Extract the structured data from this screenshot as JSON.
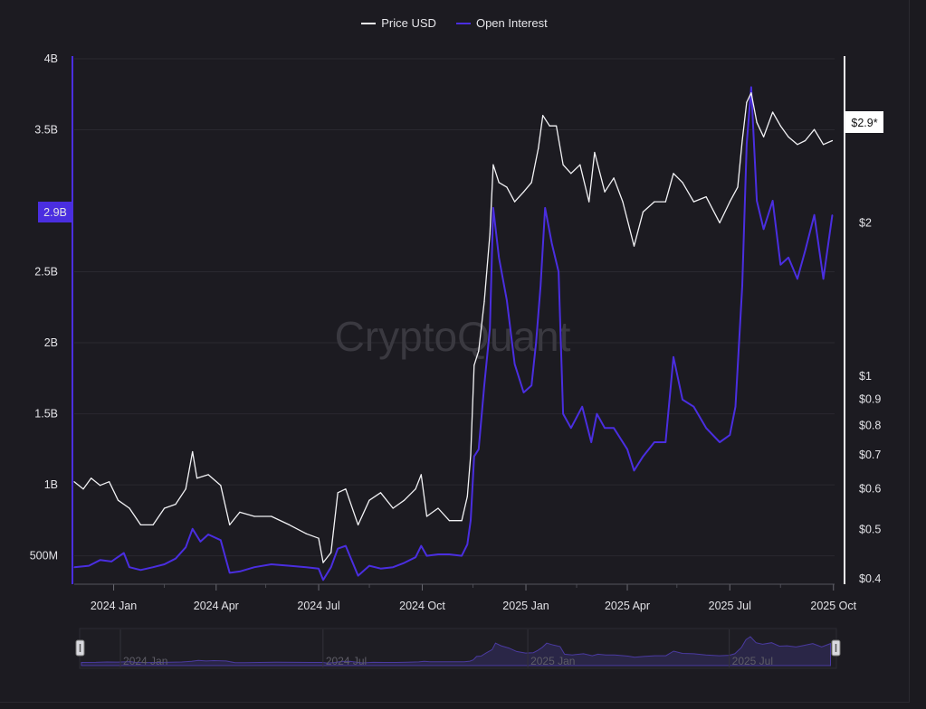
{
  "legend": {
    "items": [
      {
        "label": "Price USD",
        "color": "#f2f2f5"
      },
      {
        "label": "Open Interest",
        "color": "#4a2ee0"
      }
    ]
  },
  "watermark": "CryptoQuant",
  "badges": {
    "left_value": "2.9B",
    "right_value": "$2.9*"
  },
  "navigator": {
    "labels": [
      "2024 Jan",
      "2024 Jul",
      "2025 Jan",
      "2025 Jul"
    ]
  },
  "chart_data": {
    "type": "line",
    "x_ticks": [
      "2024 Jan",
      "2024 Apr",
      "2024 Jul",
      "2024 Oct",
      "2025 Jan",
      "2025 Apr",
      "2025 Jul",
      "2025 Oct"
    ],
    "x_range": [
      "2023-11-27",
      "2025-10-02"
    ],
    "y_left": {
      "label": "Open Interest",
      "range": [
        300000000,
        4000000000
      ],
      "ticks": [
        {
          "v": 500000000,
          "t": "500M"
        },
        {
          "v": 1000000000,
          "t": "1B"
        },
        {
          "v": 1500000000,
          "t": "1.5B"
        },
        {
          "v": 2000000000,
          "t": "2B"
        },
        {
          "v": 2500000000,
          "t": "2.5B"
        },
        {
          "v": 3500000000,
          "t": "3.5B"
        },
        {
          "v": 4000000000,
          "t": "4B"
        }
      ]
    },
    "y_right": {
      "label": "Price USD",
      "scale": "log",
      "range": [
        0.39,
        4.2
      ],
      "ticks": [
        {
          "v": 0.4,
          "t": "$0.4"
        },
        {
          "v": 0.5,
          "t": "$0.5"
        },
        {
          "v": 0.6,
          "t": "$0.6"
        },
        {
          "v": 0.7,
          "t": "$0.7"
        },
        {
          "v": 0.8,
          "t": "$0.8"
        },
        {
          "v": 0.9,
          "t": "$0.9"
        },
        {
          "v": 1,
          "t": "$1"
        },
        {
          "v": 2,
          "t": "$2"
        }
      ]
    },
    "series": [
      {
        "name": "Price USD",
        "axis": "right",
        "color": "#f2f2f5",
        "points": [
          [
            "2023-11-27",
            0.62
          ],
          [
            "2023-12-05",
            0.6
          ],
          [
            "2023-12-12",
            0.63
          ],
          [
            "2023-12-20",
            0.61
          ],
          [
            "2023-12-28",
            0.62
          ],
          [
            "2024-01-05",
            0.57
          ],
          [
            "2024-01-15",
            0.55
          ],
          [
            "2024-01-25",
            0.51
          ],
          [
            "2024-02-05",
            0.51
          ],
          [
            "2024-02-15",
            0.55
          ],
          [
            "2024-02-25",
            0.56
          ],
          [
            "2024-03-05",
            0.6
          ],
          [
            "2024-03-11",
            0.71
          ],
          [
            "2024-03-15",
            0.63
          ],
          [
            "2024-03-25",
            0.64
          ],
          [
            "2024-04-05",
            0.61
          ],
          [
            "2024-04-13",
            0.51
          ],
          [
            "2024-04-22",
            0.54
          ],
          [
            "2024-05-05",
            0.53
          ],
          [
            "2024-05-20",
            0.53
          ],
          [
            "2024-06-05",
            0.51
          ],
          [
            "2024-06-20",
            0.49
          ],
          [
            "2024-07-01",
            0.48
          ],
          [
            "2024-07-05",
            0.43
          ],
          [
            "2024-07-12",
            0.45
          ],
          [
            "2024-07-18",
            0.59
          ],
          [
            "2024-07-25",
            0.6
          ],
          [
            "2024-08-05",
            0.51
          ],
          [
            "2024-08-15",
            0.57
          ],
          [
            "2024-08-25",
            0.59
          ],
          [
            "2024-09-05",
            0.55
          ],
          [
            "2024-09-15",
            0.57
          ],
          [
            "2024-09-25",
            0.6
          ],
          [
            "2024-09-30",
            0.64
          ],
          [
            "2024-10-05",
            0.53
          ],
          [
            "2024-10-15",
            0.55
          ],
          [
            "2024-10-25",
            0.52
          ],
          [
            "2024-11-05",
            0.52
          ],
          [
            "2024-11-10",
            0.58
          ],
          [
            "2024-11-13",
            0.7
          ],
          [
            "2024-11-16",
            1.05
          ],
          [
            "2024-11-20",
            1.12
          ],
          [
            "2024-11-25",
            1.4
          ],
          [
            "2024-11-30",
            1.9
          ],
          [
            "2024-12-03",
            2.6
          ],
          [
            "2024-12-08",
            2.4
          ],
          [
            "2024-12-15",
            2.35
          ],
          [
            "2024-12-22",
            2.2
          ],
          [
            "2024-12-30",
            2.3
          ],
          [
            "2025-01-06",
            2.4
          ],
          [
            "2025-01-12",
            2.8
          ],
          [
            "2025-01-16",
            3.25
          ],
          [
            "2025-01-22",
            3.1
          ],
          [
            "2025-01-28",
            3.1
          ],
          [
            "2025-02-03",
            2.6
          ],
          [
            "2025-02-10",
            2.5
          ],
          [
            "2025-02-18",
            2.6
          ],
          [
            "2025-02-26",
            2.2
          ],
          [
            "2025-03-03",
            2.75
          ],
          [
            "2025-03-12",
            2.3
          ],
          [
            "2025-03-20",
            2.45
          ],
          [
            "2025-03-28",
            2.2
          ],
          [
            "2025-04-07",
            1.8
          ],
          [
            "2025-04-15",
            2.1
          ],
          [
            "2025-04-25",
            2.2
          ],
          [
            "2025-05-05",
            2.2
          ],
          [
            "2025-05-12",
            2.5
          ],
          [
            "2025-05-20",
            2.4
          ],
          [
            "2025-05-30",
            2.2
          ],
          [
            "2025-06-10",
            2.25
          ],
          [
            "2025-06-22",
            2.0
          ],
          [
            "2025-07-01",
            2.2
          ],
          [
            "2025-07-08",
            2.35
          ],
          [
            "2025-07-12",
            2.9
          ],
          [
            "2025-07-16",
            3.45
          ],
          [
            "2025-07-20",
            3.6
          ],
          [
            "2025-07-25",
            3.15
          ],
          [
            "2025-07-31",
            2.95
          ],
          [
            "2025-08-08",
            3.3
          ],
          [
            "2025-08-15",
            3.1
          ],
          [
            "2025-08-22",
            2.95
          ],
          [
            "2025-08-30",
            2.85
          ],
          [
            "2025-09-06",
            2.9
          ],
          [
            "2025-09-14",
            3.05
          ],
          [
            "2025-09-22",
            2.85
          ],
          [
            "2025-09-30",
            2.9
          ]
        ]
      },
      {
        "name": "Open Interest",
        "axis": "left",
        "color": "#4a2ee0",
        "points": [
          [
            "2023-11-27",
            420000000
          ],
          [
            "2023-12-10",
            430000000
          ],
          [
            "2023-12-20",
            470000000
          ],
          [
            "2023-12-30",
            460000000
          ],
          [
            "2024-01-10",
            520000000
          ],
          [
            "2024-01-15",
            420000000
          ],
          [
            "2024-01-25",
            400000000
          ],
          [
            "2024-02-05",
            420000000
          ],
          [
            "2024-02-15",
            440000000
          ],
          [
            "2024-02-25",
            480000000
          ],
          [
            "2024-03-05",
            560000000
          ],
          [
            "2024-03-11",
            690000000
          ],
          [
            "2024-03-18",
            600000000
          ],
          [
            "2024-03-25",
            650000000
          ],
          [
            "2024-04-05",
            610000000
          ],
          [
            "2024-04-13",
            380000000
          ],
          [
            "2024-04-22",
            390000000
          ],
          [
            "2024-05-05",
            420000000
          ],
          [
            "2024-05-20",
            440000000
          ],
          [
            "2024-06-05",
            430000000
          ],
          [
            "2024-06-20",
            420000000
          ],
          [
            "2024-07-01",
            410000000
          ],
          [
            "2024-07-05",
            330000000
          ],
          [
            "2024-07-12",
            420000000
          ],
          [
            "2024-07-18",
            550000000
          ],
          [
            "2024-07-25",
            570000000
          ],
          [
            "2024-08-05",
            360000000
          ],
          [
            "2024-08-15",
            430000000
          ],
          [
            "2024-08-25",
            410000000
          ],
          [
            "2024-09-05",
            420000000
          ],
          [
            "2024-09-15",
            450000000
          ],
          [
            "2024-09-25",
            490000000
          ],
          [
            "2024-09-30",
            570000000
          ],
          [
            "2024-10-05",
            500000000
          ],
          [
            "2024-10-15",
            510000000
          ],
          [
            "2024-10-25",
            510000000
          ],
          [
            "2024-11-05",
            500000000
          ],
          [
            "2024-11-10",
            580000000
          ],
          [
            "2024-11-13",
            750000000
          ],
          [
            "2024-11-16",
            1200000000
          ],
          [
            "2024-11-20",
            1250000000
          ],
          [
            "2024-11-25",
            1700000000
          ],
          [
            "2024-11-30",
            2100000000
          ],
          [
            "2024-12-03",
            2950000000
          ],
          [
            "2024-12-08",
            2600000000
          ],
          [
            "2024-12-15",
            2300000000
          ],
          [
            "2024-12-22",
            1850000000
          ],
          [
            "2024-12-30",
            1650000000
          ],
          [
            "2025-01-06",
            1700000000
          ],
          [
            "2025-01-10",
            2000000000
          ],
          [
            "2025-01-14",
            2400000000
          ],
          [
            "2025-01-18",
            2950000000
          ],
          [
            "2025-01-24",
            2700000000
          ],
          [
            "2025-01-30",
            2500000000
          ],
          [
            "2025-02-03",
            1500000000
          ],
          [
            "2025-02-10",
            1400000000
          ],
          [
            "2025-02-20",
            1550000000
          ],
          [
            "2025-02-28",
            1300000000
          ],
          [
            "2025-03-05",
            1500000000
          ],
          [
            "2025-03-12",
            1400000000
          ],
          [
            "2025-03-20",
            1400000000
          ],
          [
            "2025-04-01",
            1250000000
          ],
          [
            "2025-04-07",
            1100000000
          ],
          [
            "2025-04-15",
            1200000000
          ],
          [
            "2025-04-25",
            1300000000
          ],
          [
            "2025-05-05",
            1300000000
          ],
          [
            "2025-05-12",
            1900000000
          ],
          [
            "2025-05-20",
            1600000000
          ],
          [
            "2025-05-30",
            1550000000
          ],
          [
            "2025-06-10",
            1400000000
          ],
          [
            "2025-06-22",
            1300000000
          ],
          [
            "2025-07-01",
            1350000000
          ],
          [
            "2025-07-06",
            1550000000
          ],
          [
            "2025-07-12",
            2400000000
          ],
          [
            "2025-07-16",
            3400000000
          ],
          [
            "2025-07-20",
            3800000000
          ],
          [
            "2025-07-25",
            3000000000
          ],
          [
            "2025-07-31",
            2800000000
          ],
          [
            "2025-08-08",
            3000000000
          ],
          [
            "2025-08-15",
            2550000000
          ],
          [
            "2025-08-22",
            2600000000
          ],
          [
            "2025-08-30",
            2450000000
          ],
          [
            "2025-09-06",
            2650000000
          ],
          [
            "2025-09-14",
            2900000000
          ],
          [
            "2025-09-22",
            2450000000
          ],
          [
            "2025-09-30",
            2900000000
          ]
        ]
      }
    ],
    "grid": true,
    "legend_position": "top-center"
  }
}
